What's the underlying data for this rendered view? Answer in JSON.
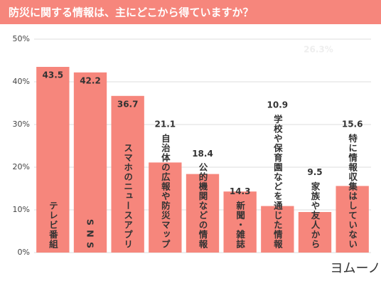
{
  "chart_data": {
    "type": "bar",
    "title": "防災に関する情報は、主にどこから得ていますか？",
    "categories": [
      "テレビ番組",
      "S N S",
      "スマホのニュースアプリ",
      "自治体の広報や防災マップ",
      "公的機関などの情報",
      "新聞・雑誌",
      "学校や保育園などを通じた情報",
      "家族や友人から",
      "特に情報収集はしていない"
    ],
    "values": [
      43.5,
      42.2,
      36.7,
      21.1,
      18.4,
      14.3,
      10.9,
      9.5,
      15.6
    ],
    "color": "#f6867c",
    "ylim": [
      0,
      50
    ],
    "yticks": [
      {
        "value": 0,
        "label": "0%"
      },
      {
        "value": 10,
        "label": "10%"
      },
      {
        "value": 20,
        "label": "20%"
      },
      {
        "value": 30,
        "label": "30%"
      },
      {
        "value": 40,
        "label": "40%"
      },
      {
        "value": 50,
        "label": "50%"
      }
    ],
    "grid": true,
    "annotation": "26.3%",
    "logo": "ヨムーノ"
  }
}
